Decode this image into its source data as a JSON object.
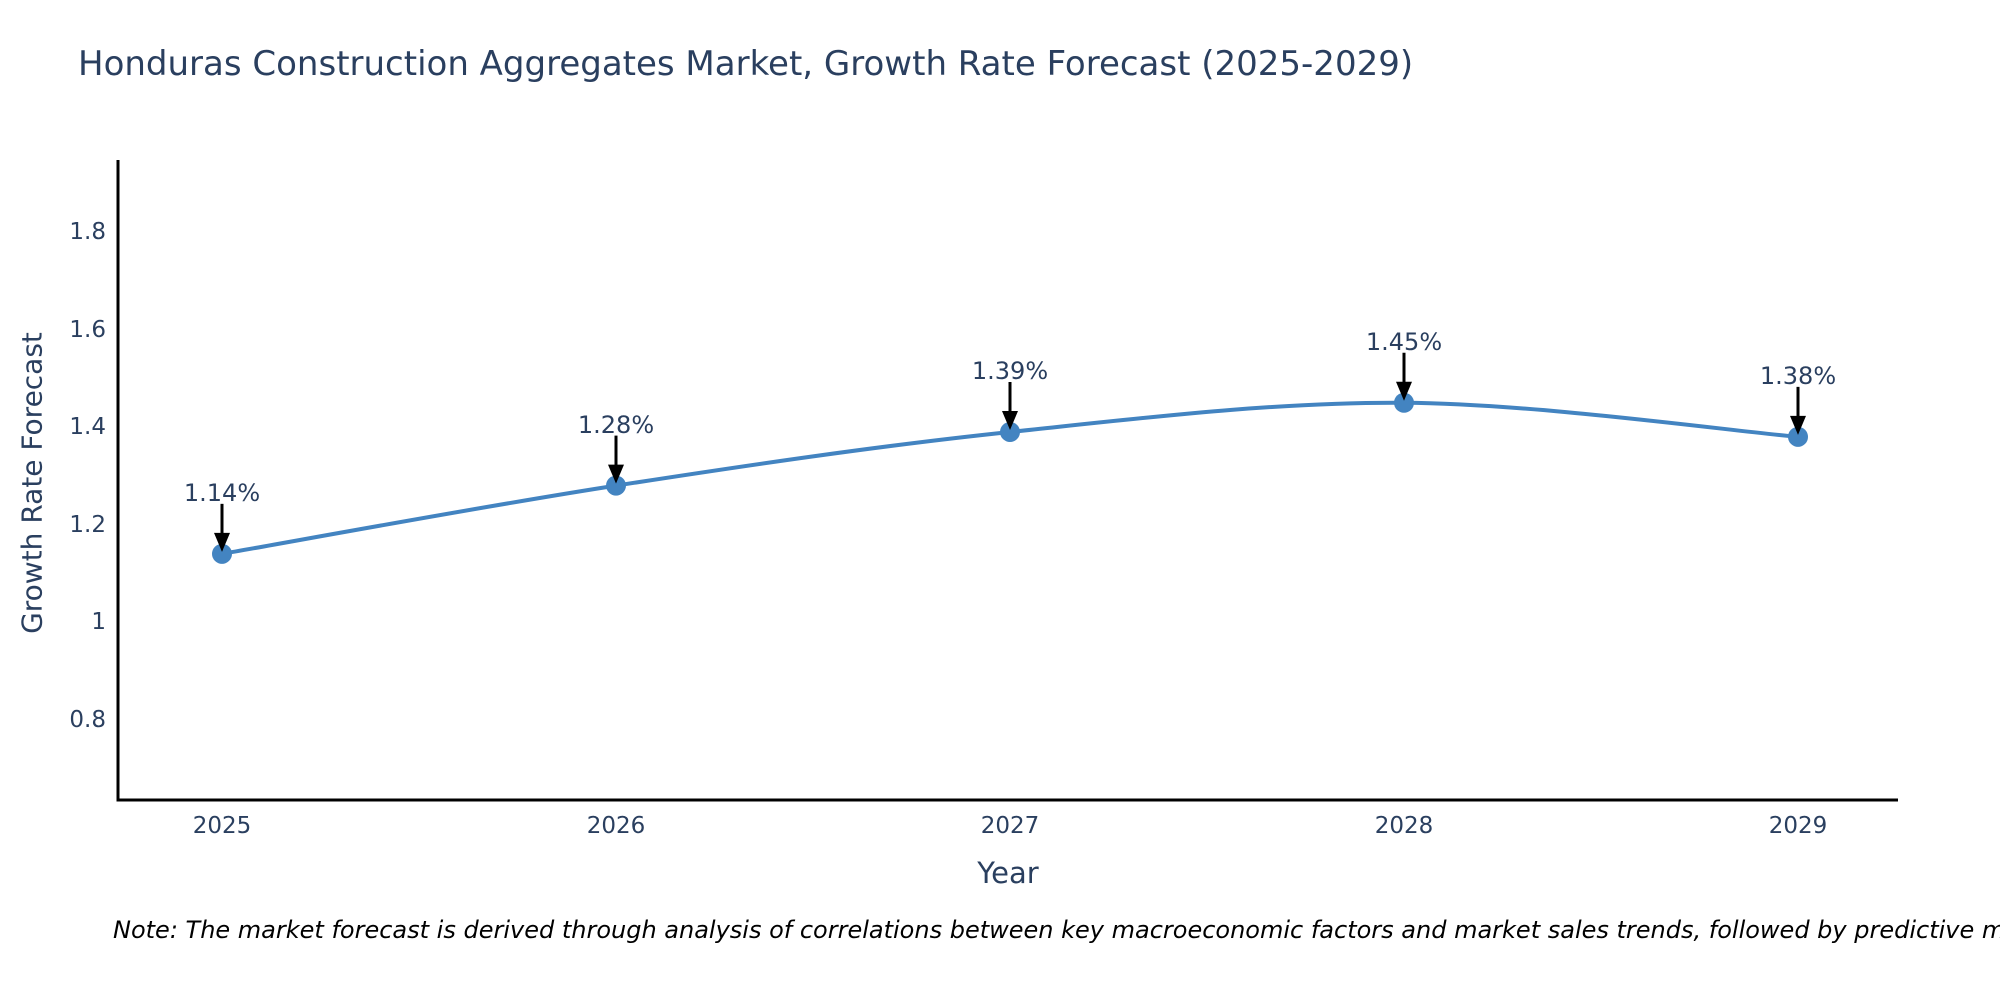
{
  "footnote": {
    "text": "Note: The market forecast is derived through analysis of correlations between key macroeconomic factors and market sales trends, followed by predictive modeling to project future sales"
  },
  "chart_data": {
    "type": "line",
    "title": "Honduras Construction Aggregates Market, Growth Rate Forecast (2025-2029)",
    "xlabel": "Year",
    "ylabel": "Growth Rate Forecast",
    "categories": [
      "2025",
      "2026",
      "2027",
      "2028",
      "2029"
    ],
    "series": [
      {
        "name": "Growth Rate Forecast",
        "values": [
          1.14,
          1.28,
          1.39,
          1.45,
          1.38
        ],
        "point_labels": [
          "1.14%",
          "1.28%",
          "1.39%",
          "1.45%",
          "1.38%"
        ]
      }
    ],
    "line_shape": "spline",
    "markers": true,
    "annotations_with_arrows": true,
    "ylim": [
      0.635,
      1.948
    ],
    "ytick_labels": [
      "1.8",
      "1.6",
      "1.4",
      "1.2",
      "1",
      "0.8"
    ],
    "ytick_values": [
      1.8,
      1.6,
      1.4,
      1.2,
      1.0,
      0.8
    ],
    "grid": false,
    "legend_position": "none",
    "colors": {
      "line": "#4384c1",
      "marker": "#4384c1",
      "axis_line": "#000000",
      "arrow": "#000000",
      "text": "#2a3f5f",
      "note_text": "#000000"
    }
  }
}
